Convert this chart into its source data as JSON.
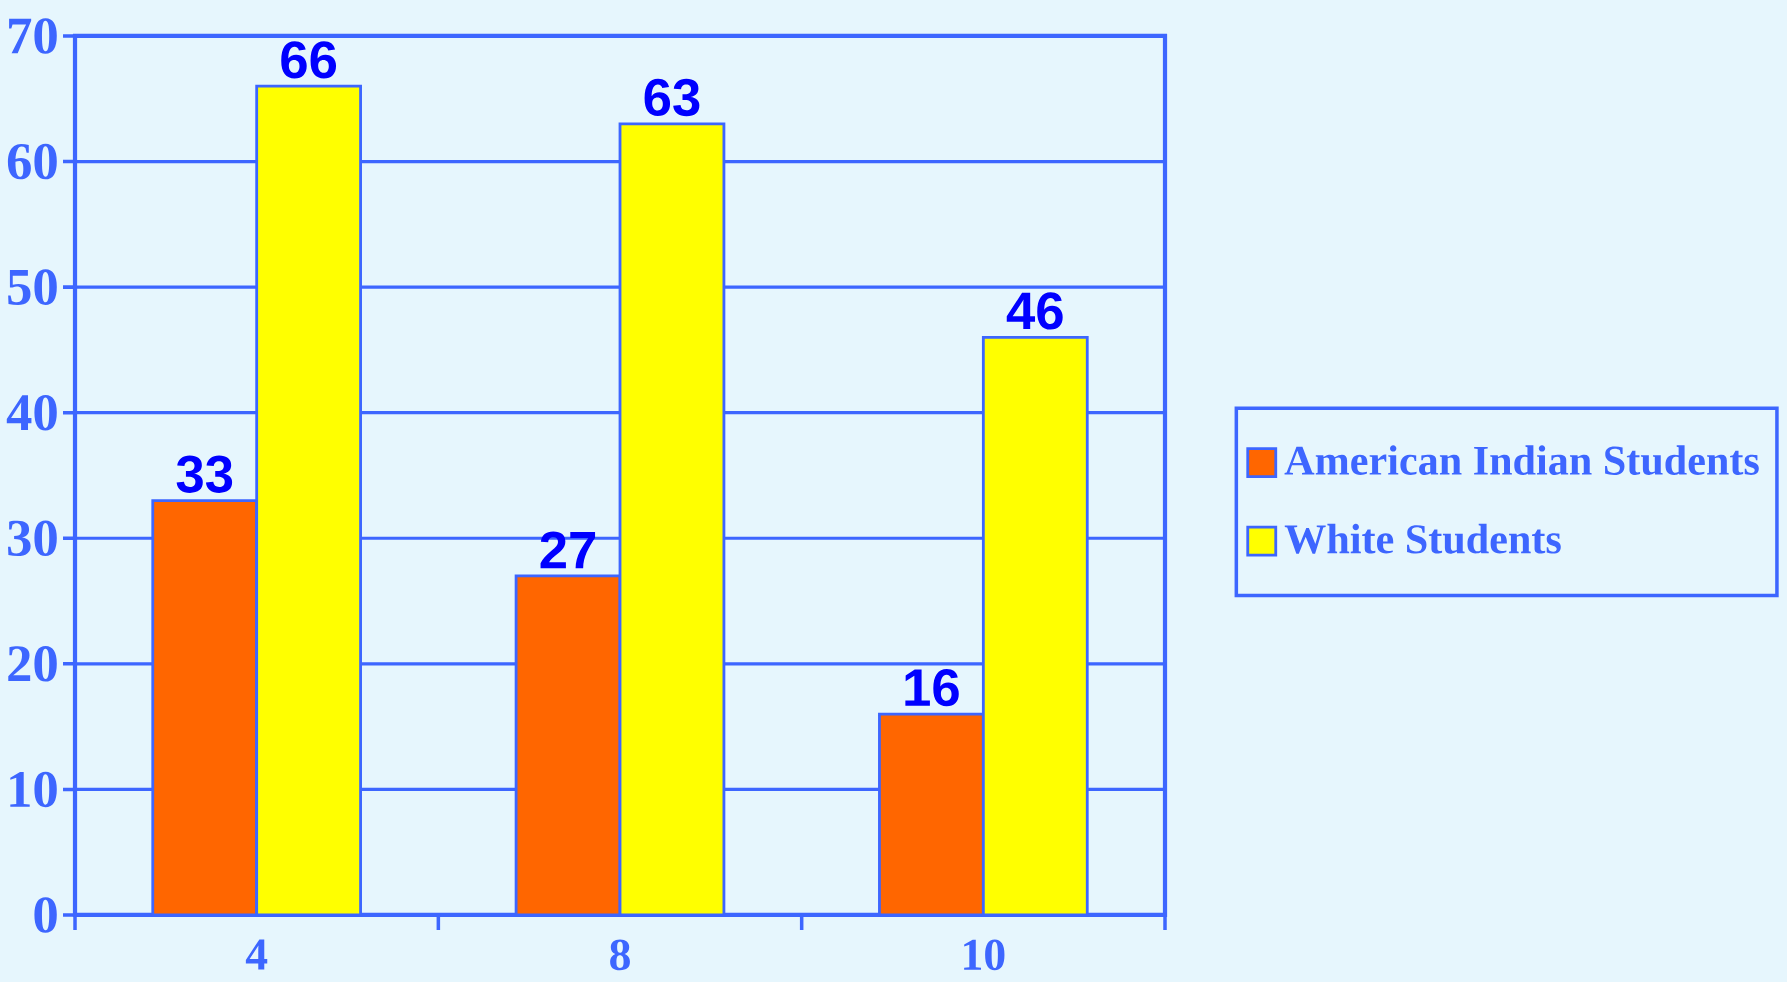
{
  "chart_data": {
    "type": "bar",
    "categories": [
      "4",
      "8",
      "10"
    ],
    "series": [
      {
        "name": "American Indian Students",
        "color": "#ff6600",
        "values": [
          33,
          27,
          16
        ]
      },
      {
        "name": "White Students",
        "color": "#ffff00",
        "values": [
          66,
          63,
          46
        ]
      }
    ],
    "ylim": [
      0,
      70
    ],
    "yticks": [
      0,
      10,
      20,
      30,
      40,
      50,
      60,
      70
    ],
    "grid": "y",
    "legend": "right",
    "data_labels": true
  }
}
